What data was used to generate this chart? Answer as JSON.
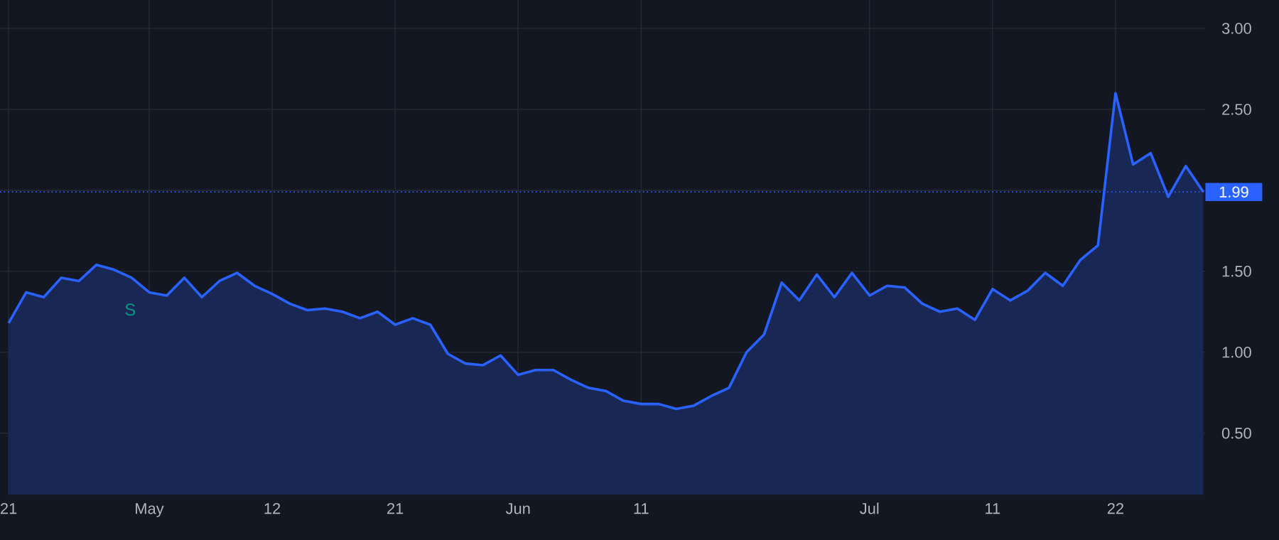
{
  "chart_data": {
    "type": "area",
    "categories": [
      "21",
      null,
      null,
      null,
      null,
      null,
      null,
      null,
      "May",
      null,
      null,
      null,
      null,
      null,
      null,
      "12",
      null,
      null,
      null,
      null,
      null,
      null,
      "21",
      null,
      null,
      null,
      null,
      null,
      null,
      "Jun",
      null,
      null,
      null,
      null,
      null,
      null,
      "11",
      null,
      null,
      null,
      null,
      null,
      null,
      null,
      null,
      null,
      null,
      null,
      null,
      "Jul",
      null,
      null,
      null,
      null,
      null,
      null,
      "11",
      null,
      null,
      null,
      null,
      null,
      null,
      "22",
      null,
      null,
      null,
      null,
      null
    ],
    "series": [
      {
        "color": "#2962ff",
        "values": [
          1.18,
          1.37,
          1.34,
          1.46,
          1.44,
          1.54,
          1.51,
          1.46,
          1.37,
          1.35,
          1.46,
          1.34,
          1.44,
          1.49,
          1.41,
          1.36,
          1.3,
          1.26,
          1.27,
          1.25,
          1.21,
          1.25,
          1.17,
          1.21,
          1.17,
          0.99,
          0.93,
          0.92,
          0.98,
          0.86,
          0.89,
          0.89,
          0.83,
          0.78,
          0.76,
          0.7,
          0.68,
          0.68,
          0.65,
          0.67,
          0.73,
          0.78,
          1.0,
          1.11,
          1.43,
          1.32,
          1.48,
          1.34,
          1.49,
          1.35,
          1.41,
          1.4,
          1.3,
          1.25,
          1.27,
          1.2,
          1.39,
          1.32,
          1.38,
          1.49,
          1.41,
          1.57,
          1.66,
          2.6,
          2.16,
          2.23,
          1.96,
          2.15,
          1.99
        ]
      }
    ],
    "ylim": [
      0.12,
      3.21
    ],
    "yticks": [
      {
        "value": 0.5,
        "label": "0.50"
      },
      {
        "value": 1.0,
        "label": "1.00"
      },
      {
        "value": 1.5,
        "label": "1.50"
      },
      {
        "value": 2.0,
        "label": null
      },
      {
        "value": 2.5,
        "label": "2.50"
      },
      {
        "value": 3.0,
        "label": "3.00"
      }
    ],
    "grid": true,
    "line_style": "solid",
    "ref_lines": [
      {
        "axis": "y",
        "value": 1.99,
        "label": "1.99",
        "color": "#2962ff",
        "line_style": "dotted"
      }
    ],
    "annotations": [
      "S"
    ]
  }
}
